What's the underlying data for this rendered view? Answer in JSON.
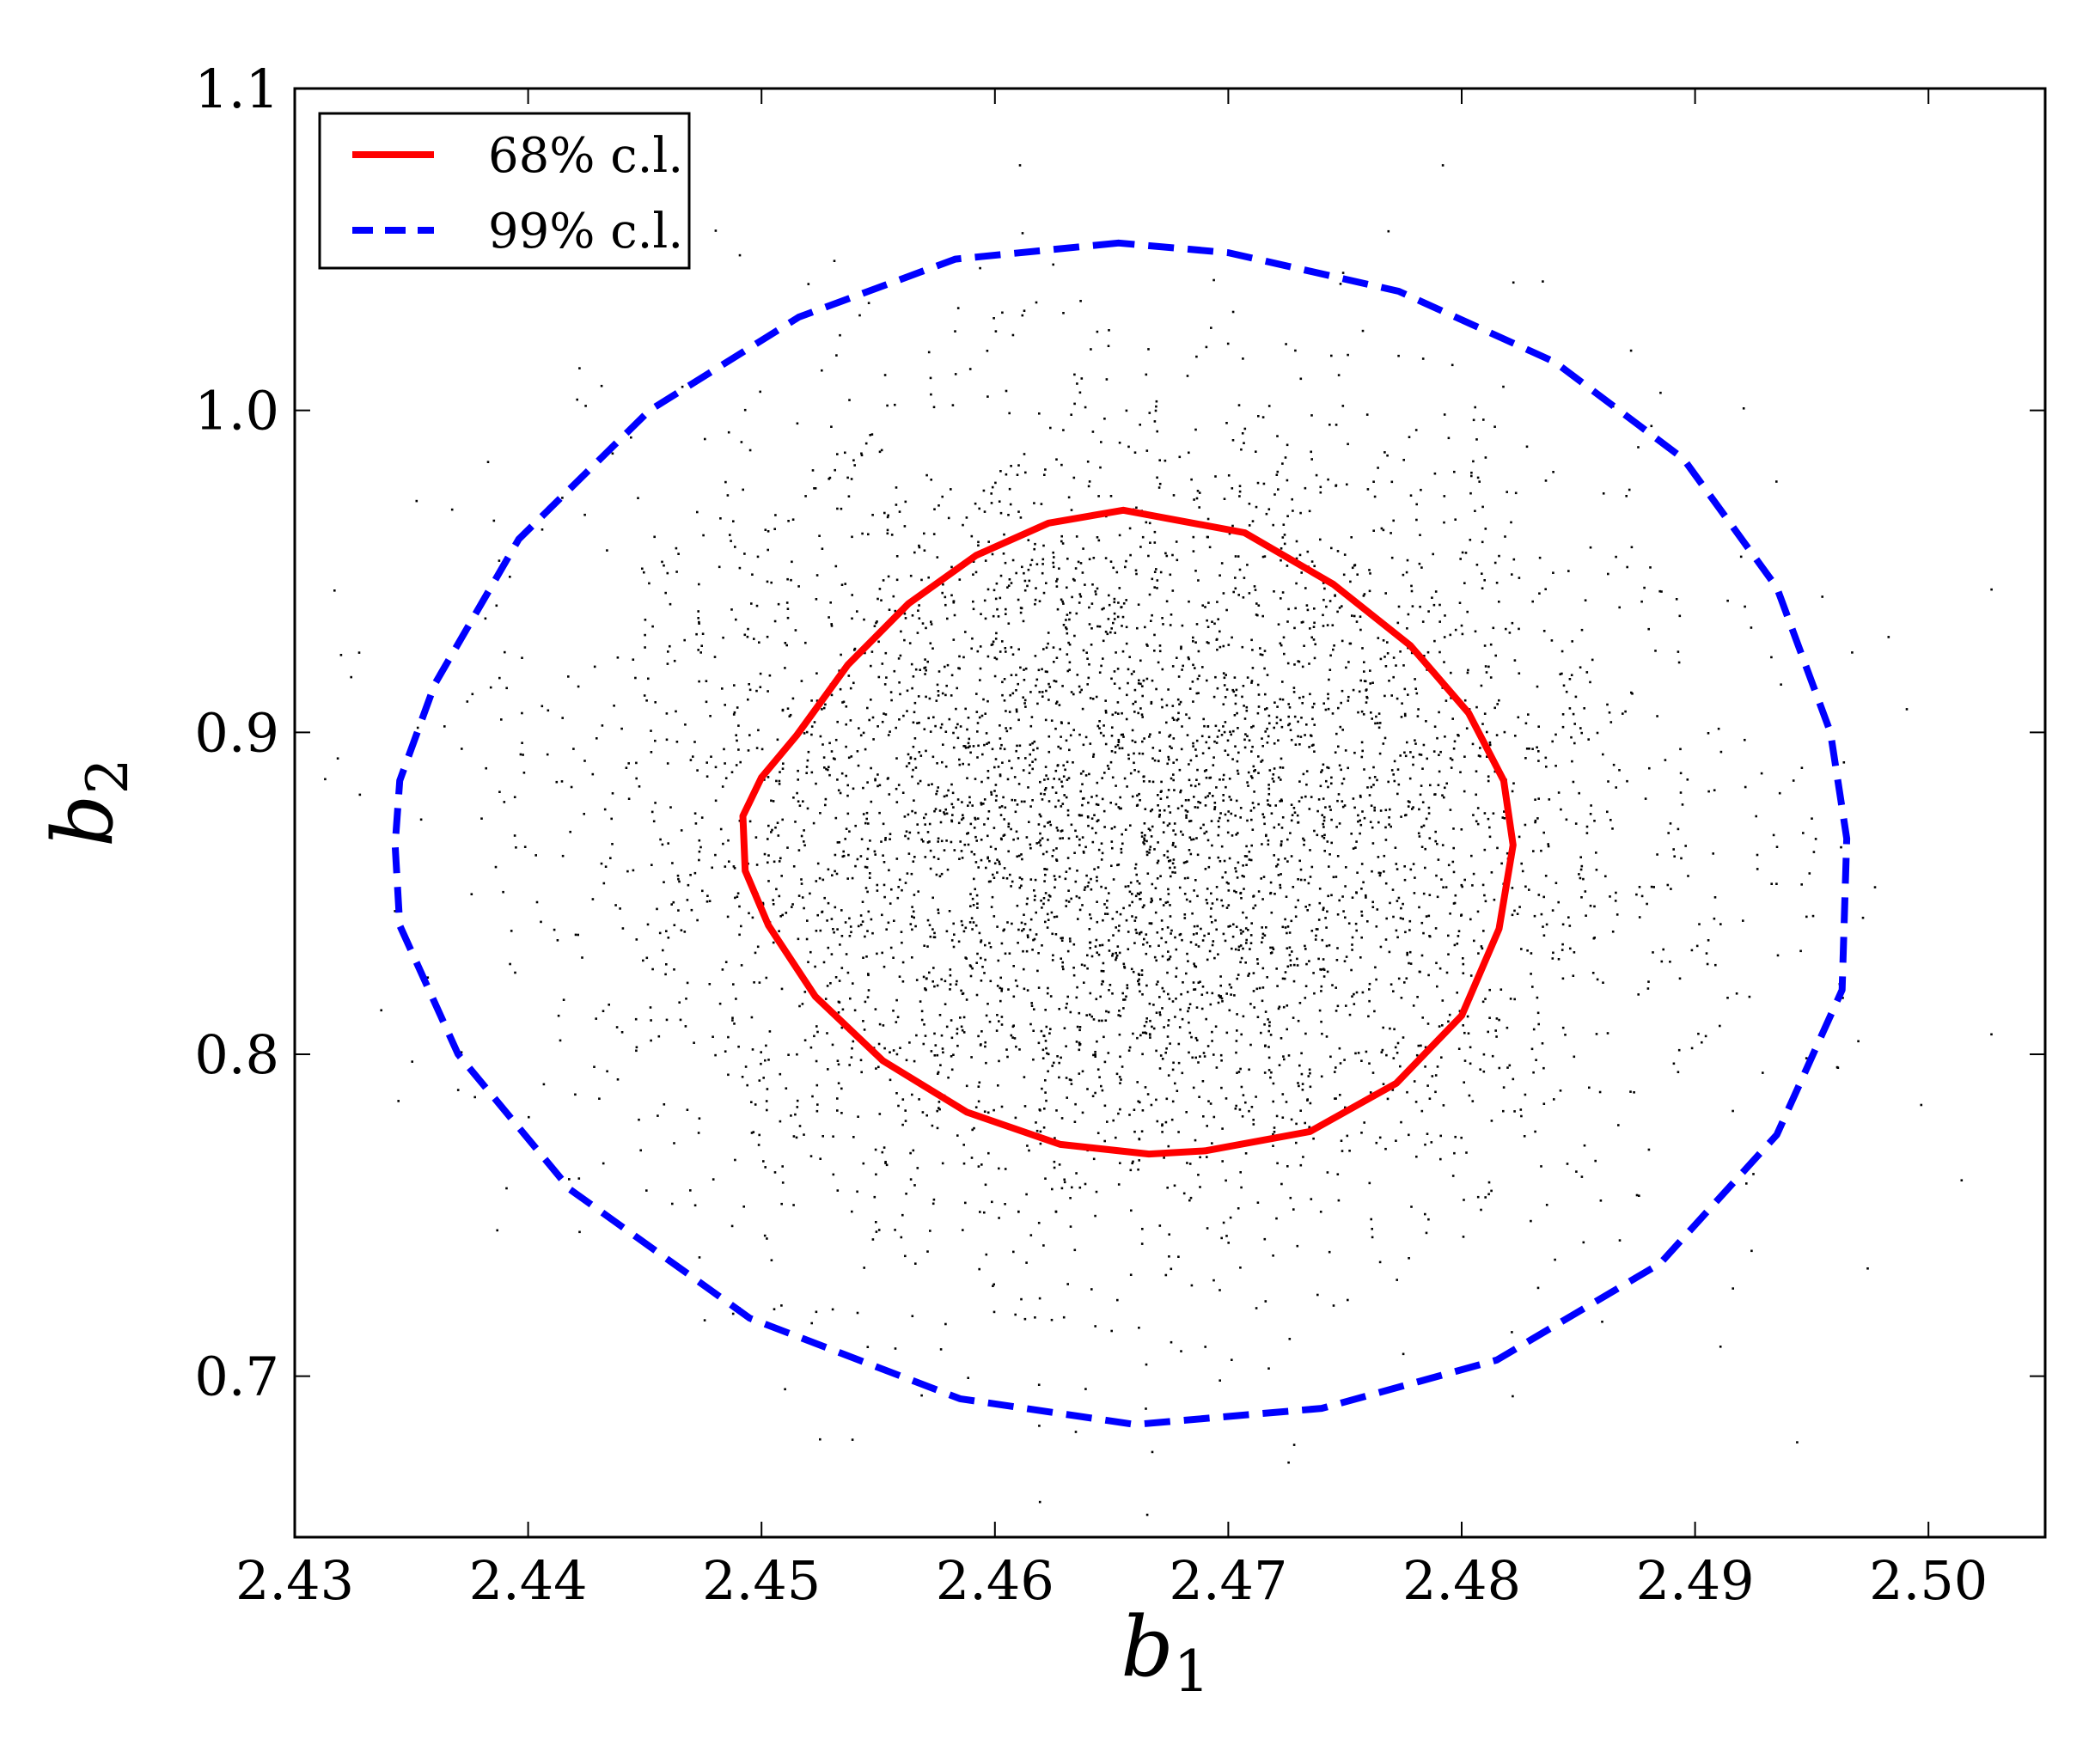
{
  "chart_data": {
    "type": "scatter",
    "title": "",
    "xlabel": "b",
    "xlabel_subscript": "1",
    "ylabel": "b",
    "ylabel_subscript": "2",
    "xlim": [
      2.43,
      2.505
    ],
    "ylim": [
      0.65,
      1.1
    ],
    "xticks": [
      2.43,
      2.44,
      2.45,
      2.46,
      2.47,
      2.48,
      2.49,
      2.5
    ],
    "xtick_labels": [
      "2.43",
      "2.44",
      "2.45",
      "2.46",
      "2.47",
      "2.48",
      "2.49",
      "2.50"
    ],
    "yticks": [
      0.7,
      0.8,
      0.9,
      1.0,
      1.1
    ],
    "ytick_labels": [
      "0.7",
      "0.8",
      "0.9",
      "1.0",
      "1.1"
    ],
    "grid": false,
    "legend_position": "top-left",
    "scatter": {
      "color": "#000000",
      "approx_count": 5000,
      "center": [
        2.4657,
        0.869
      ],
      "sd": [
        0.0112,
        0.0627
      ],
      "x_range_visible": [
        2.431,
        2.503
      ],
      "y_range_visible": [
        0.655,
        1.085
      ]
    },
    "series": [
      {
        "name": "68% c.l.",
        "color": "#ff0000",
        "style": "solid",
        "contour": {
          "x": [
            2.4655,
            2.4623,
            2.4592,
            2.4563,
            2.4537,
            2.4515,
            2.45,
            2.4492,
            2.4493,
            2.4503,
            2.4523,
            2.4552,
            2.4588,
            2.4628,
            2.4666,
            2.469,
            2.4735,
            2.4772,
            2.48,
            2.4816,
            2.4822,
            2.4818,
            2.4803,
            2.4778,
            2.4745,
            2.4707,
            2.4655
          ],
          "y": [
            0.969,
            0.965,
            0.955,
            0.94,
            0.921,
            0.899,
            0.886,
            0.874,
            0.857,
            0.84,
            0.818,
            0.798,
            0.782,
            0.772,
            0.769,
            0.77,
            0.776,
            0.791,
            0.812,
            0.839,
            0.865,
            0.885,
            0.906,
            0.927,
            0.946,
            0.962,
            0.969
          ]
        }
      },
      {
        "name": "99% c.l.",
        "color": "#0000ff",
        "style": "dashed",
        "contour": {
          "x": [
            2.4653,
            2.4583,
            2.4516,
            2.4452,
            2.4396,
            2.436,
            2.4345,
            2.4343,
            2.4345,
            2.437,
            2.4418,
            2.4495,
            2.4585,
            2.466,
            2.474,
            2.4815,
            2.4885,
            2.4935,
            2.4963,
            2.4965,
            2.4958,
            2.4935,
            2.4895,
            2.484,
            2.4773,
            2.47,
            2.4653
          ],
          "y": [
            1.052,
            1.047,
            1.029,
            1.0,
            0.96,
            0.915,
            0.885,
            0.865,
            0.84,
            0.8,
            0.758,
            0.718,
            0.693,
            0.685,
            0.69,
            0.705,
            0.735,
            0.775,
            0.82,
            0.867,
            0.9,
            0.945,
            0.985,
            1.015,
            1.037,
            1.049,
            1.052
          ]
        }
      }
    ]
  }
}
